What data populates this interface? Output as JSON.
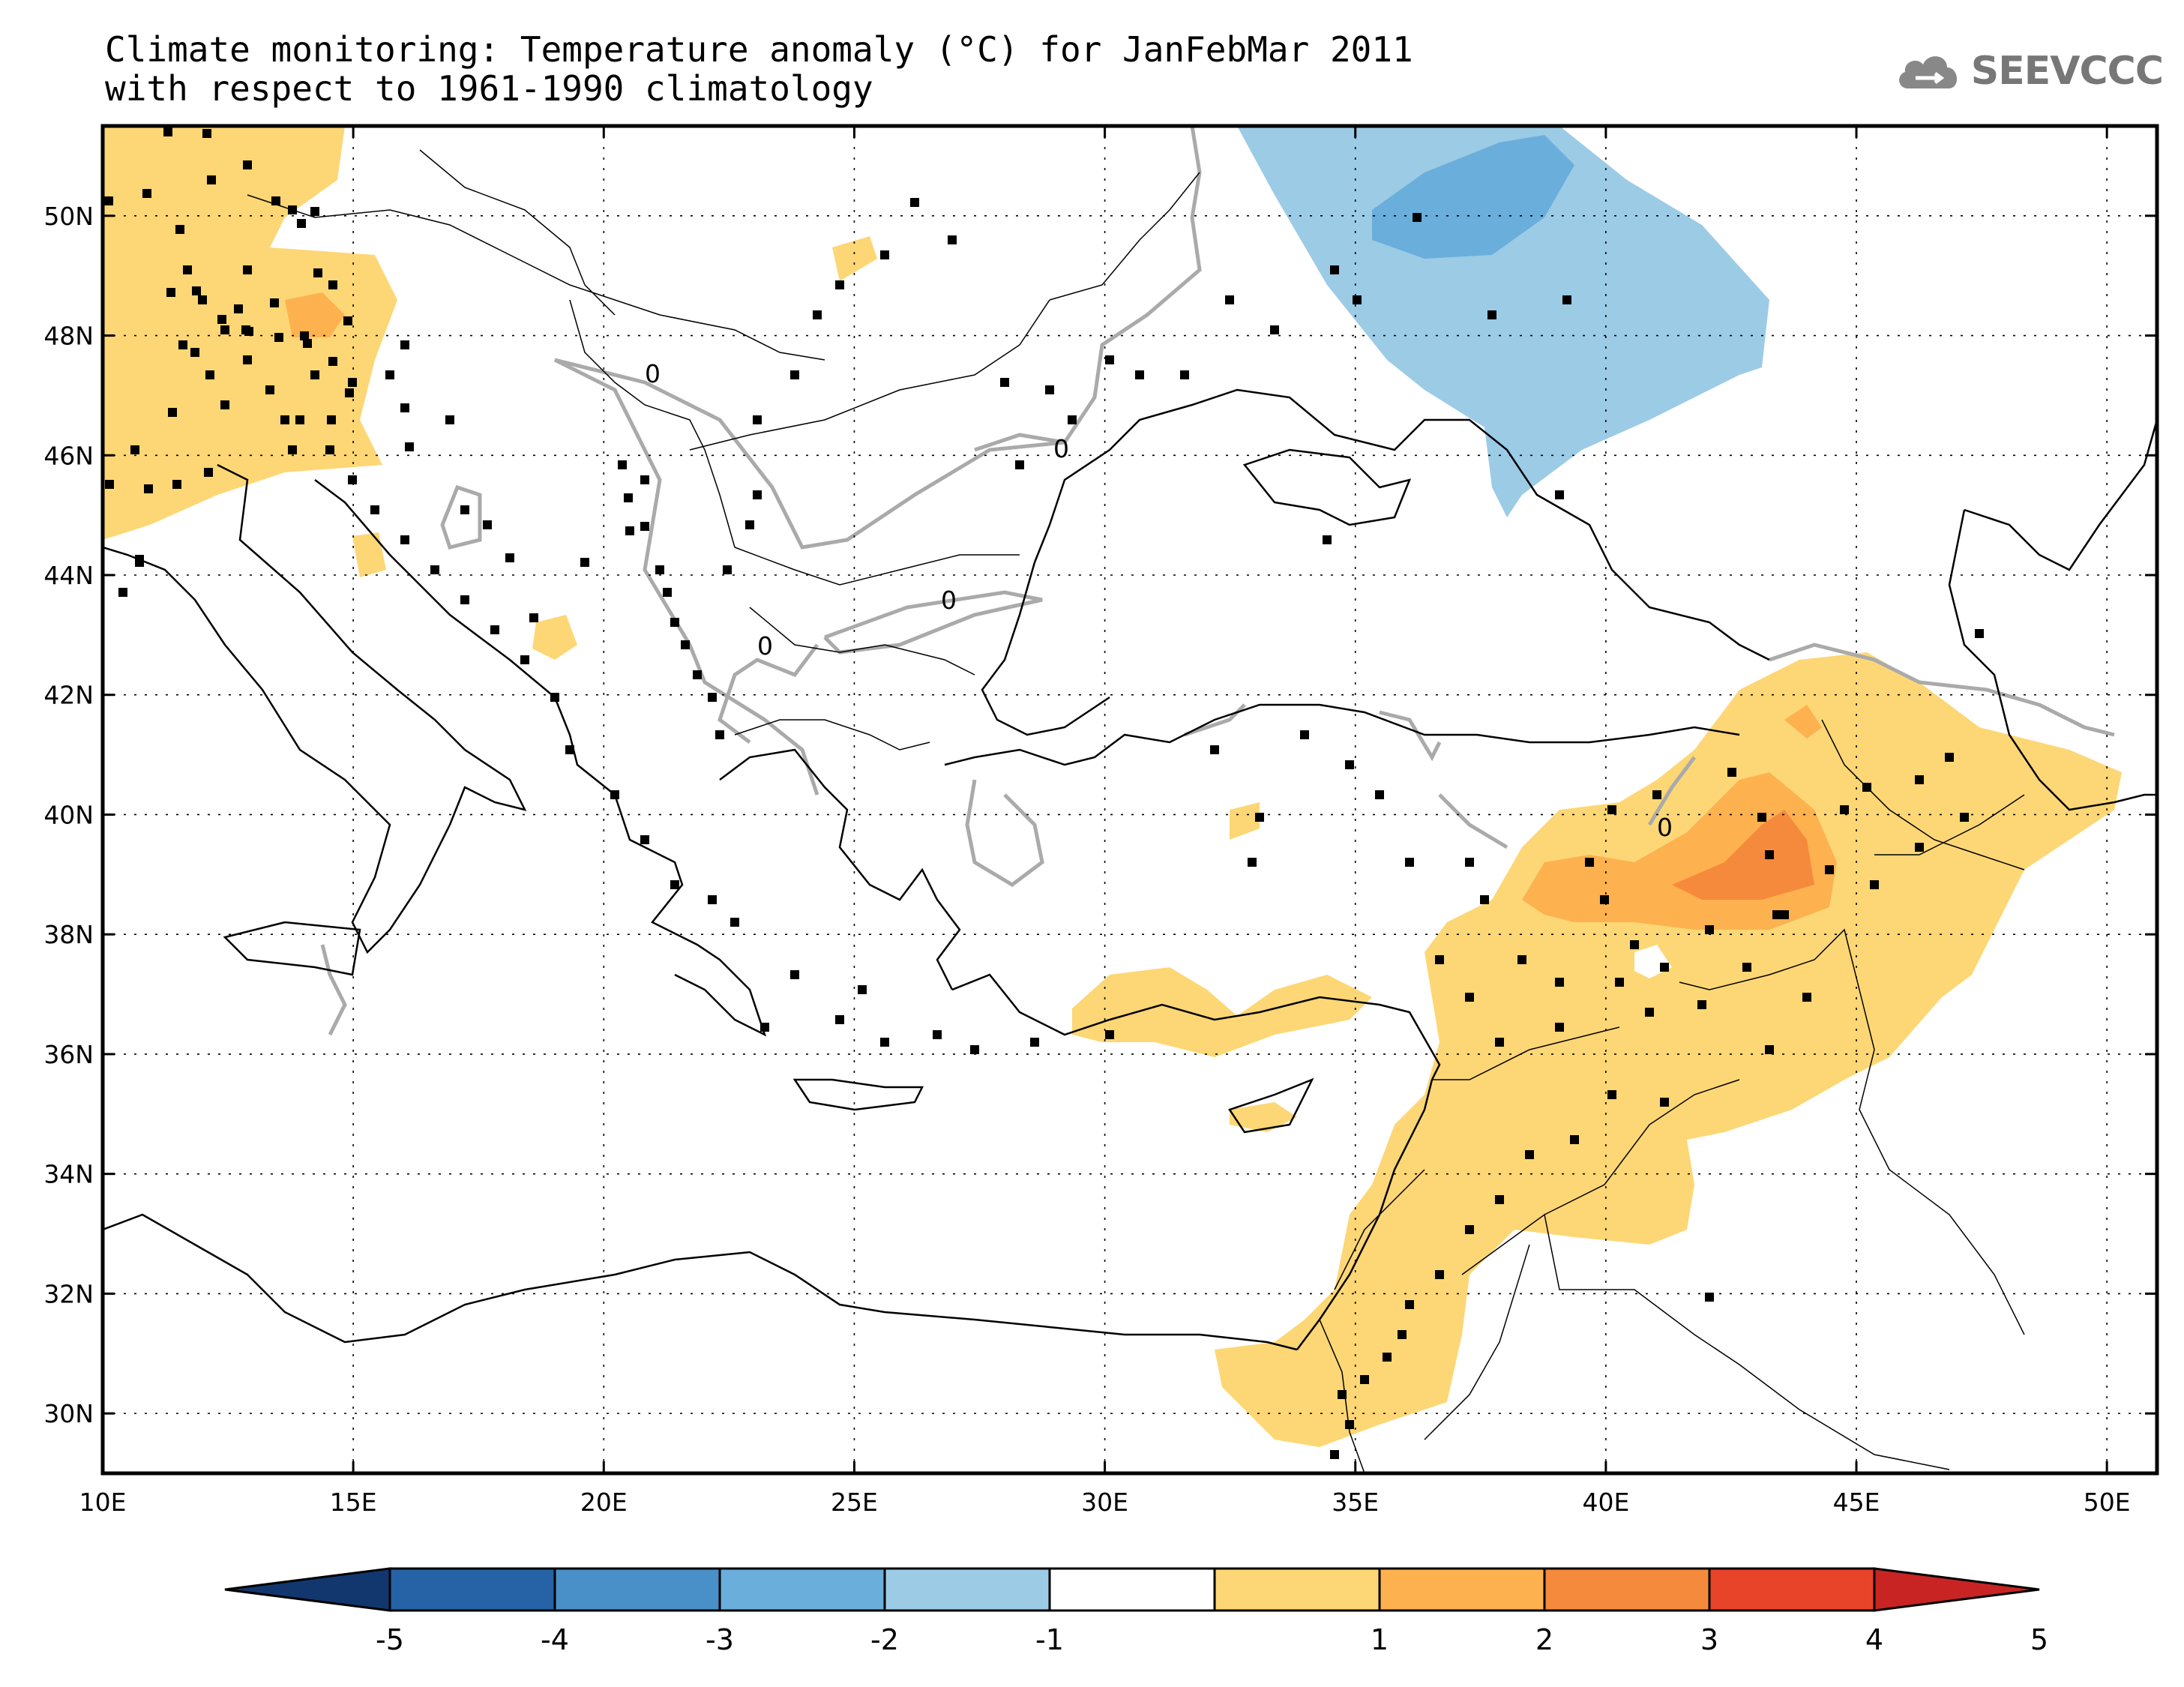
{
  "title": {
    "line1": "Climate monitoring: Temperature anomaly (°C) for JanFebMar 2011",
    "line2": "with respect to 1961-1990 climatology"
  },
  "logo": {
    "text": "SEEVCCC",
    "icon": "cloud-icon"
  },
  "map": {
    "lon_range": [
      10,
      51
    ],
    "lat_range": [
      29,
      51.5
    ],
    "lon_ticks": [
      {
        "value": 10,
        "label": "10E"
      },
      {
        "value": 15,
        "label": "15E"
      },
      {
        "value": 20,
        "label": "20E"
      },
      {
        "value": 25,
        "label": "25E"
      },
      {
        "value": 30,
        "label": "30E"
      },
      {
        "value": 35,
        "label": "35E"
      },
      {
        "value": 40,
        "label": "40E"
      },
      {
        "value": 45,
        "label": "45E"
      },
      {
        "value": 50,
        "label": "50E"
      }
    ],
    "lat_ticks": [
      {
        "value": 30,
        "label": "30N"
      },
      {
        "value": 32,
        "label": "32N"
      },
      {
        "value": 34,
        "label": "34N"
      },
      {
        "value": 36,
        "label": "36N"
      },
      {
        "value": 38,
        "label": "38N"
      },
      {
        "value": 40,
        "label": "40N"
      },
      {
        "value": 42,
        "label": "42N"
      },
      {
        "value": 44,
        "label": "44N"
      },
      {
        "value": 46,
        "label": "46N"
      },
      {
        "value": 48,
        "label": "48N"
      },
      {
        "value": 50,
        "label": "50N"
      }
    ],
    "contour_label": "0",
    "grid": "dotted"
  },
  "colorbar": {
    "labels": [
      "-5",
      "-4",
      "-3",
      "-2",
      "-1",
      "1",
      "2",
      "3",
      "4",
      "5"
    ],
    "colors": [
      "#12376e",
      "#2563a6",
      "#4a90c8",
      "#6aaedb",
      "#9ccbe6",
      "#ffffff",
      "#fdd775",
      "#fdb14f",
      "#f68a3c",
      "#e8442a",
      "#c82423"
    ]
  },
  "colors": {
    "warm1": "#fdd775",
    "warm2": "#fdb14f",
    "warm3": "#f68a3c",
    "cool1": "#9ccbe6",
    "cool2": "#6aaedb",
    "contour": "#aaaaaa"
  }
}
